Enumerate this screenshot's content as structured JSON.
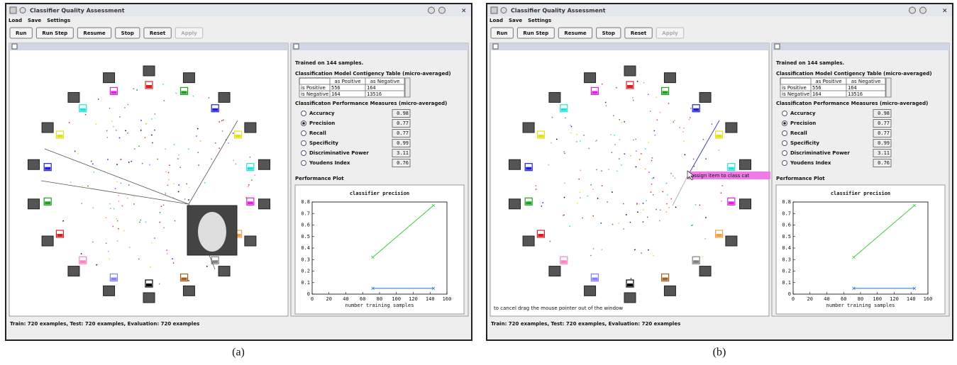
{
  "windows": [
    {
      "caption": "(a)",
      "title": "Classifier Quality Assessment",
      "menu": [
        "Load",
        "Save",
        "Settings"
      ],
      "buttons": [
        "Run",
        "Run Step",
        "Resume",
        "Stop",
        "Reset",
        "Apply"
      ],
      "info": "Trained on 144 samples.",
      "table_title": "Classification Model Contigency Table (micro-averaged)",
      "table": {
        "header": [
          "as Positive",
          "as Negative"
        ],
        "rows": [
          [
            "is Positive",
            556,
            164
          ],
          [
            "is Negative",
            164,
            13516
          ]
        ]
      },
      "measures_title": "Classificaton Performance Measures (micro-averaged)",
      "measures": [
        {
          "label": "Accuracy",
          "value": 0.98
        },
        {
          "label": "Precision",
          "value": 0.77,
          "selected": true
        },
        {
          "label": "Recall",
          "value": 0.77
        },
        {
          "label": "Specificity",
          "value": 0.99
        },
        {
          "label": "Discriminative Power",
          "value": 3.11
        },
        {
          "label": "Youdens Index",
          "value": 0.76
        }
      ],
      "plot_title": "Performance Plot",
      "plot": {
        "type": "line",
        "title": "classifier precision",
        "xlabel": "number training samples",
        "x": [
          72,
          144
        ],
        "series": [
          {
            "color": "#3cc83c",
            "values": [
              0.32,
              0.77
            ]
          },
          {
            "color": "#1e78d6",
            "values": [
              0.05,
              0.05
            ]
          }
        ],
        "xlim": [
          0,
          160
        ],
        "xticks": [
          0,
          20,
          40,
          60,
          80,
          100,
          120,
          140,
          160
        ],
        "ylim": [
          0,
          0.8
        ],
        "yticks": [
          0,
          0.1,
          0.2,
          0.3,
          0.4,
          0.5,
          0.6,
          0.7,
          0.8
        ]
      },
      "status": "Train: 720 examples, Test: 720 examples, Evaluation: 720 examples"
    },
    {
      "caption": "(b)",
      "title": "Classifier Quality Assessment",
      "menu": [
        "Load",
        "Save",
        "Settings"
      ],
      "buttons": [
        "Run",
        "Run Step",
        "Resume",
        "Stop",
        "Reset",
        "Apply"
      ],
      "info": "Trained on 144 samples.",
      "table_title": "Classification Model Contigency Table (micro-averaged)",
      "table": {
        "header": [
          "as Positive",
          "as Negative"
        ],
        "rows": [
          [
            "is Positive",
            556,
            164
          ],
          [
            "is Negative",
            164,
            13516
          ]
        ]
      },
      "measures_title": "Classificaton Performance Measures (micro-averaged)",
      "measures": [
        {
          "label": "Accuracy",
          "value": 0.98
        },
        {
          "label": "Precision",
          "value": 0.77,
          "selected": true
        },
        {
          "label": "Recall",
          "value": 0.77
        },
        {
          "label": "Specificity",
          "value": 0.99
        },
        {
          "label": "Discriminative Power",
          "value": 3.11
        },
        {
          "label": "Youdens Index",
          "value": 0.76
        }
      ],
      "plot_title": "Performance Plot",
      "plot": {
        "type": "line",
        "title": "classifier precision",
        "xlabel": "number training samples",
        "x": [
          72,
          144
        ],
        "series": [
          {
            "color": "#3cc83c",
            "values": [
              0.32,
              0.77
            ]
          },
          {
            "color": "#1e78d6",
            "values": [
              0.05,
              0.05
            ]
          }
        ],
        "xlim": [
          0,
          160
        ],
        "xticks": [
          0,
          20,
          40,
          60,
          80,
          100,
          120,
          140,
          160
        ],
        "ylim": [
          0,
          0.8
        ],
        "yticks": [
          0,
          0.1,
          0.2,
          0.3,
          0.4,
          0.5,
          0.6,
          0.7,
          0.8
        ]
      },
      "tooltip": "assign item to class cat",
      "hint": "to cancel drag the mouse pointer out of the window",
      "status": "Train: 720 examples, Test: 720 examples, Evaluation: 720 examples"
    }
  ]
}
